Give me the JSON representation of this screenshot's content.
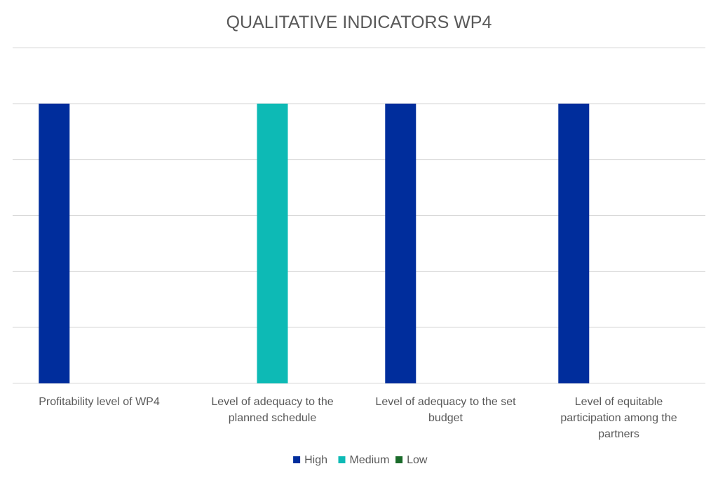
{
  "chart_data": {
    "type": "bar",
    "title": "QUALITATIVE INDICATORS WP4",
    "xlabel": "",
    "ylabel": "",
    "categories": [
      [
        "Profitability level of WP4"
      ],
      [
        "Level of adequacy to the",
        "planned schedule"
      ],
      [
        "Level of adequacy to the set",
        "budget"
      ],
      [
        "Level of equitable",
        "participation among the",
        "partners"
      ]
    ],
    "series": [
      {
        "name": "High",
        "color": "#002d9c",
        "values": [
          5,
          null,
          5,
          5
        ]
      },
      {
        "name": "Medium",
        "color": "#0dbab5",
        "values": [
          null,
          5,
          null,
          null
        ]
      },
      {
        "name": "Low",
        "color": "#1a6b2a",
        "values": [
          null,
          null,
          null,
          null
        ]
      }
    ],
    "ylim": [
      0,
      6
    ],
    "grid": true,
    "y_ticks_shown": false,
    "legend_position": "bottom"
  }
}
